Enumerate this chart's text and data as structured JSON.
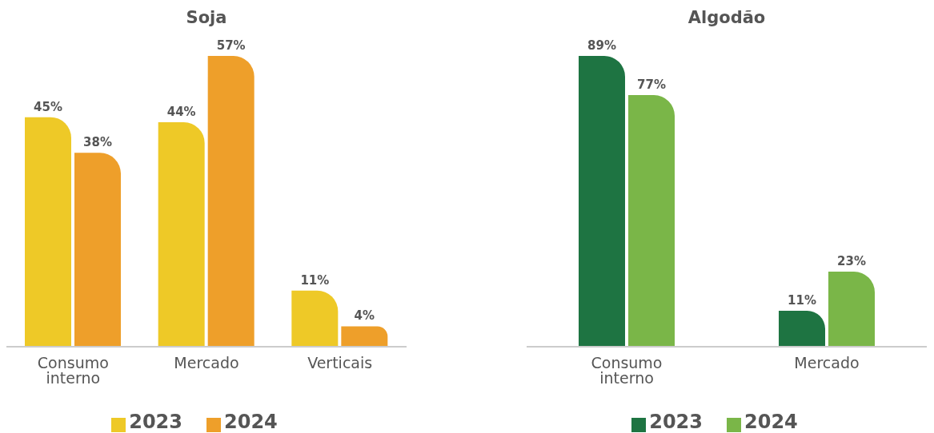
{
  "chart_data": [
    {
      "type": "bar",
      "title": "Soja",
      "categories": [
        "Consumo interno",
        "Mercado",
        "Verticais"
      ],
      "series": [
        {
          "name": "2023",
          "color": "#eec927",
          "values": [
            45,
            44,
            11
          ],
          "value_labels": [
            "45%",
            "44%",
            "11%"
          ]
        },
        {
          "name": "2024",
          "color": "#ee9f2a",
          "values": [
            38,
            57,
            4
          ],
          "value_labels": [
            "38%",
            "57%",
            "4%"
          ]
        }
      ],
      "legend": "bottom"
    },
    {
      "type": "bar",
      "title": "Algodão",
      "categories": [
        "Consumo interno",
        "Mercado"
      ],
      "series": [
        {
          "name": "2023",
          "color": "#1e7442",
          "values": [
            89,
            11
          ],
          "value_labels": [
            "89%",
            "11%"
          ]
        },
        {
          "name": "2024",
          "color": "#7ab648",
          "values": [
            77,
            23
          ],
          "value_labels": [
            "77%",
            "23%"
          ]
        }
      ],
      "legend": "bottom"
    }
  ]
}
